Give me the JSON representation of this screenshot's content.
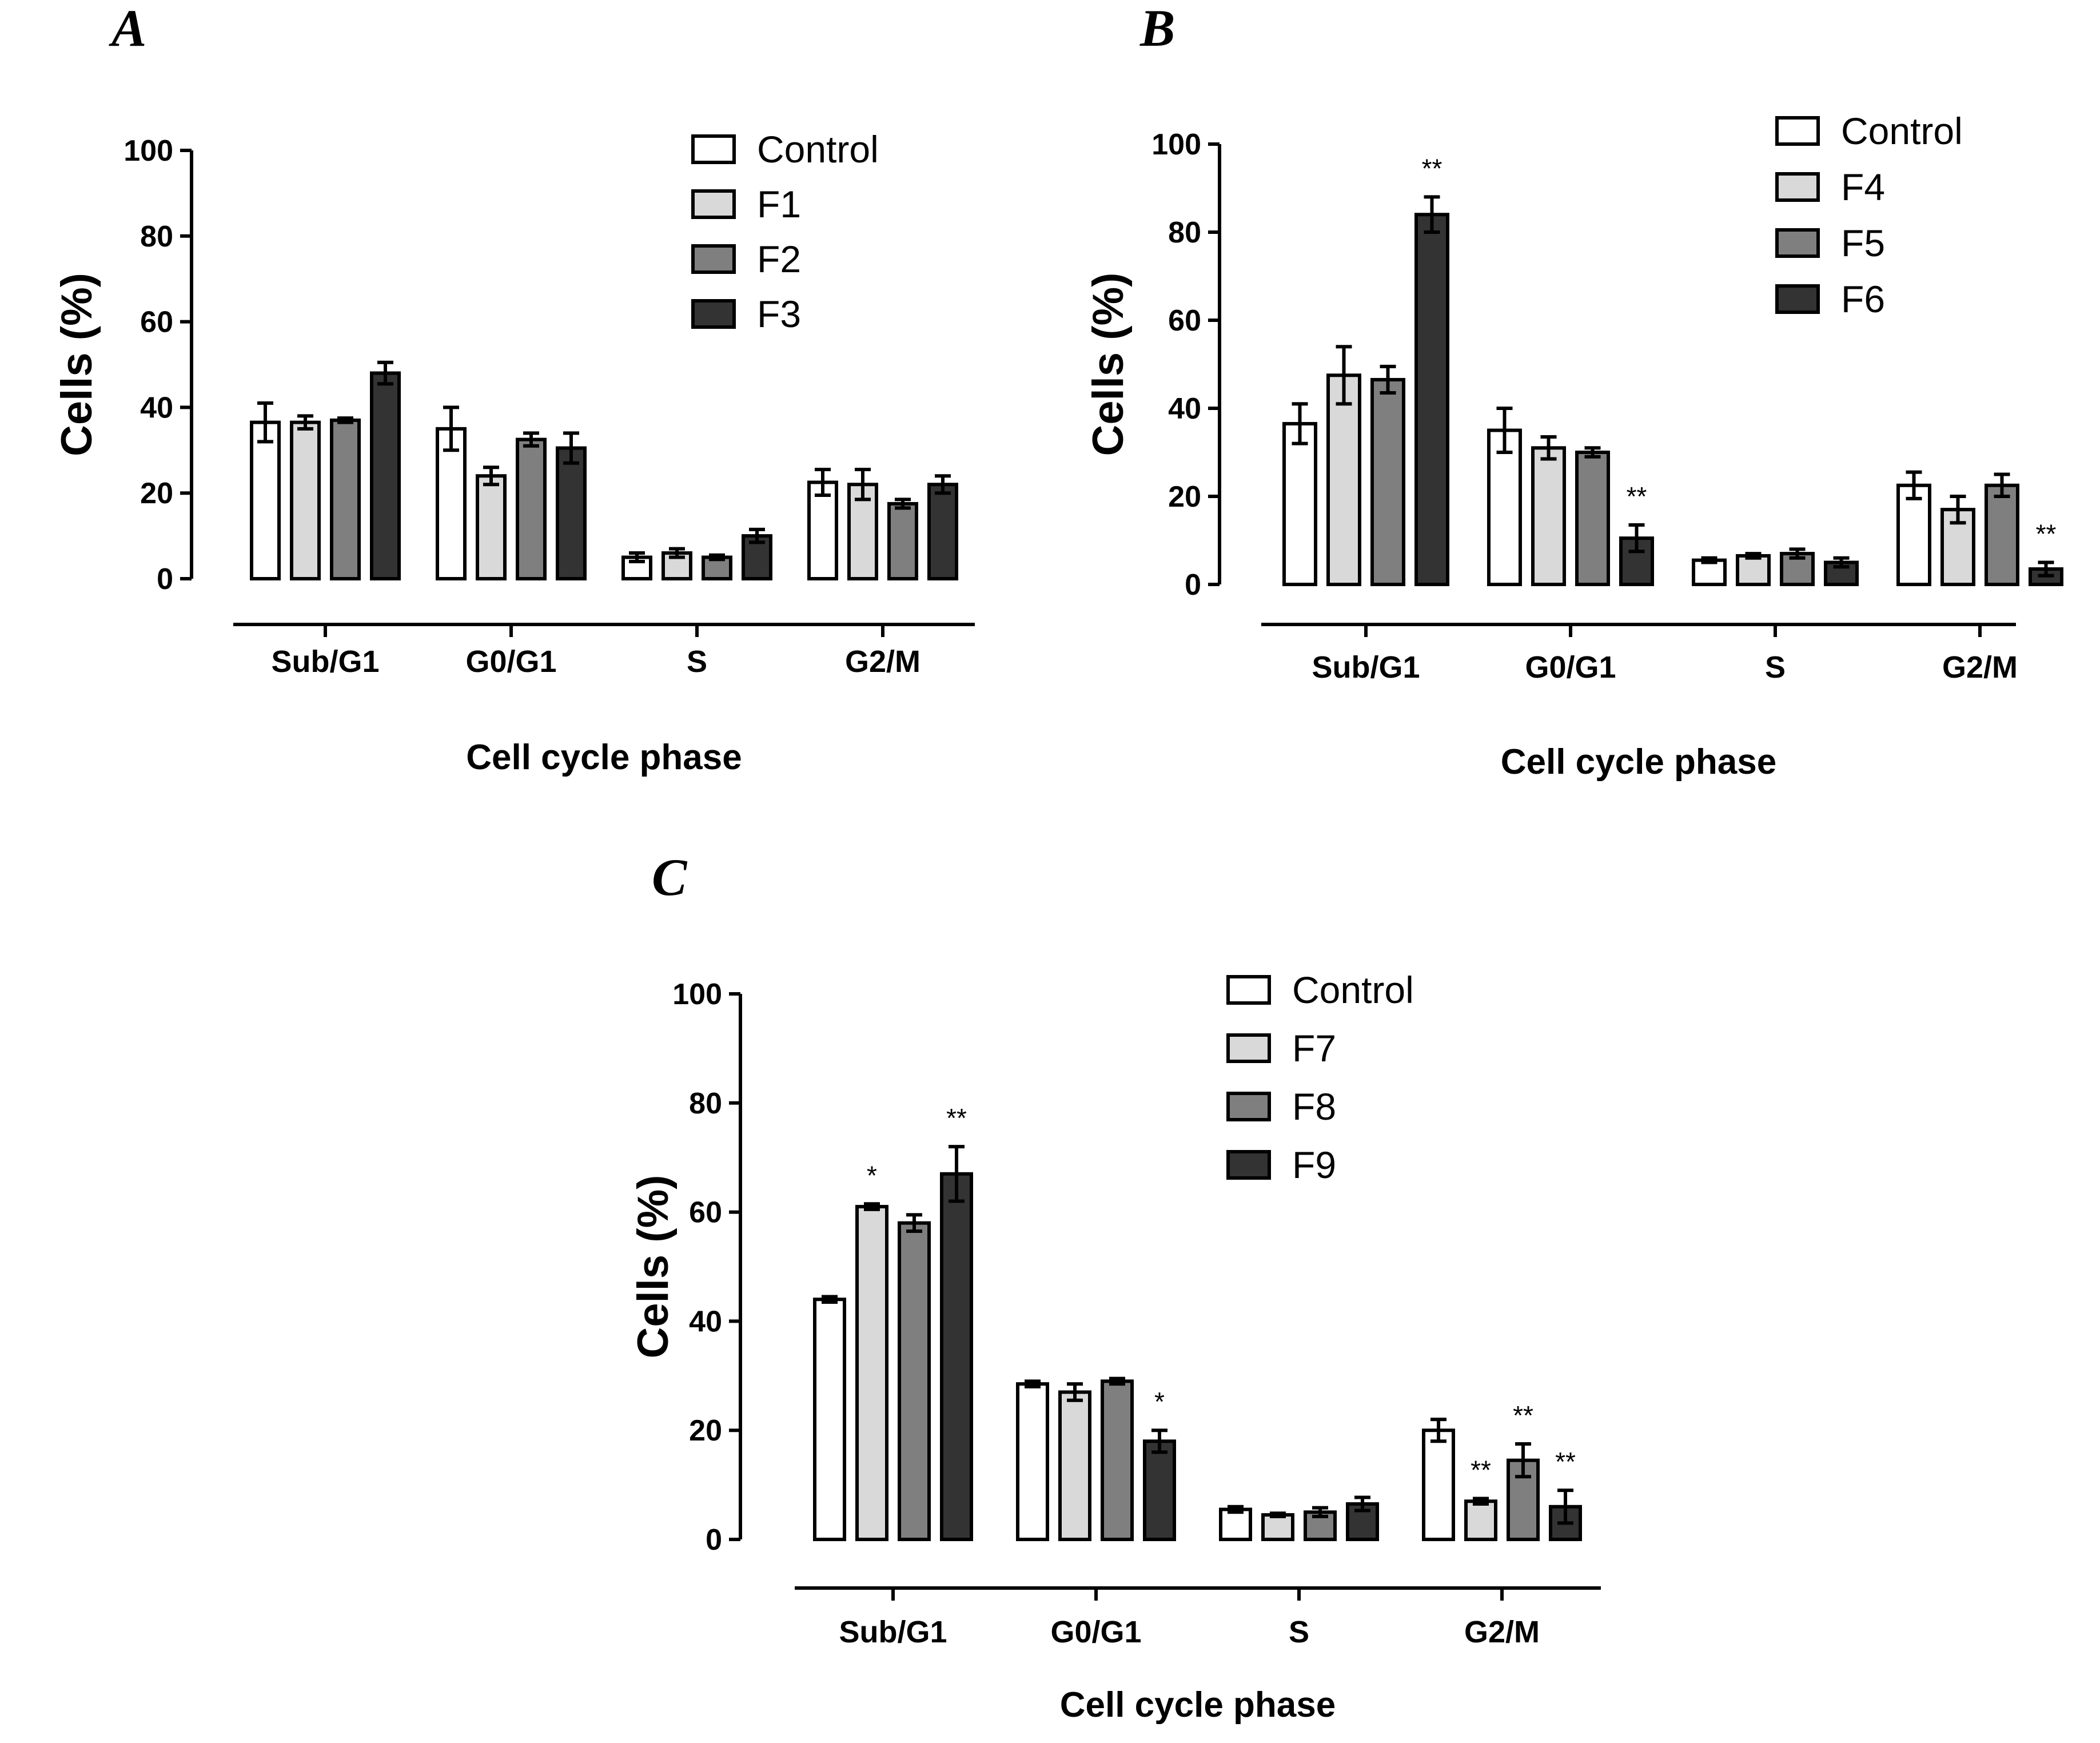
{
  "chart_data": [
    {
      "panel": "A",
      "type": "bar",
      "xlabel": "Cell cycle phase",
      "ylabel": "Cells (%)",
      "ylim": [
        0,
        100
      ],
      "yticks": [
        "0",
        "20",
        "40",
        "60",
        "80",
        "100"
      ],
      "categories": [
        "Sub/G1",
        "G0/G1",
        "S",
        "G2/M"
      ],
      "legend_position": "top-right",
      "series": [
        {
          "name": "Control",
          "color": "#ffffff",
          "values": [
            36.5,
            35,
            5,
            22.5
          ],
          "errors": [
            4.5,
            5,
            1,
            3
          ],
          "sig": [
            "",
            "",
            "",
            ""
          ]
        },
        {
          "name": "F1",
          "color": "#d9d9d9",
          "values": [
            36.5,
            24,
            6,
            22
          ],
          "errors": [
            1.5,
            2,
            1,
            3.5
          ],
          "sig": [
            "",
            "",
            "",
            ""
          ]
        },
        {
          "name": "F2",
          "color": "#7f7f7f",
          "values": [
            37,
            32.5,
            5,
            17.5
          ],
          "errors": [
            0.5,
            1.5,
            0.5,
            1
          ],
          "sig": [
            "",
            "",
            "",
            ""
          ]
        },
        {
          "name": "F3",
          "color": "#333333",
          "values": [
            48,
            30.5,
            10,
            22
          ],
          "errors": [
            2.5,
            3.5,
            1.5,
            2
          ],
          "sig": [
            "",
            "",
            "",
            ""
          ]
        }
      ]
    },
    {
      "panel": "B",
      "type": "bar",
      "xlabel": "Cell cycle phase",
      "ylabel": "Cells (%)",
      "ylim": [
        0,
        100
      ],
      "yticks": [
        "0",
        "20",
        "40",
        "60",
        "80",
        "100"
      ],
      "categories": [
        "Sub/G1",
        "G0/G1",
        "S",
        "G2/M"
      ],
      "legend_position": "top-right",
      "series": [
        {
          "name": "Control",
          "color": "#ffffff",
          "values": [
            36.5,
            35,
            5.5,
            22.5
          ],
          "errors": [
            4.5,
            5,
            0.5,
            3
          ],
          "sig": [
            "",
            "",
            "",
            ""
          ]
        },
        {
          "name": "F4",
          "color": "#d9d9d9",
          "values": [
            47.5,
            31,
            6.5,
            17
          ],
          "errors": [
            6.5,
            2.5,
            0.5,
            3
          ],
          "sig": [
            "",
            "",
            "",
            ""
          ]
        },
        {
          "name": "F5",
          "color": "#7f7f7f",
          "values": [
            46.5,
            30,
            7,
            22.5
          ],
          "errors": [
            3,
            1,
            1,
            2.5
          ],
          "sig": [
            "",
            "",
            "",
            ""
          ]
        },
        {
          "name": "F6",
          "color": "#333333",
          "values": [
            84,
            10.5,
            5,
            3.5
          ],
          "errors": [
            4,
            3,
            1,
            1.5
          ],
          "sig": [
            "**",
            "**",
            "",
            "**"
          ]
        }
      ]
    },
    {
      "panel": "C",
      "type": "bar",
      "xlabel": "Cell cycle phase",
      "ylabel": "Cells (%)",
      "ylim": [
        0,
        100
      ],
      "yticks": [
        "0",
        "20",
        "40",
        "60",
        "80",
        "100"
      ],
      "categories": [
        "Sub/G1",
        "G0/G1",
        "S",
        "G2/M"
      ],
      "legend_position": "top-right",
      "series": [
        {
          "name": "Control",
          "color": "#ffffff",
          "values": [
            44,
            28.5,
            5.5,
            20
          ],
          "errors": [
            0.5,
            0.5,
            0.5,
            2
          ],
          "sig": [
            "",
            "",
            "",
            ""
          ]
        },
        {
          "name": "F7",
          "color": "#d9d9d9",
          "values": [
            61,
            27,
            4.5,
            7
          ],
          "errors": [
            0.5,
            1.5,
            0.3,
            0.5
          ],
          "sig": [
            "*",
            "",
            "",
            "**"
          ]
        },
        {
          "name": "F8",
          "color": "#7f7f7f",
          "values": [
            58,
            29,
            5,
            14.5
          ],
          "errors": [
            1.5,
            0.5,
            0.8,
            3
          ],
          "sig": [
            "",
            "",
            "",
            "**"
          ]
        },
        {
          "name": "F9",
          "color": "#333333",
          "values": [
            67,
            18,
            6.5,
            6
          ],
          "errors": [
            5,
            2,
            1.2,
            3
          ],
          "sig": [
            "**",
            "*",
            "",
            "**"
          ]
        }
      ]
    }
  ]
}
